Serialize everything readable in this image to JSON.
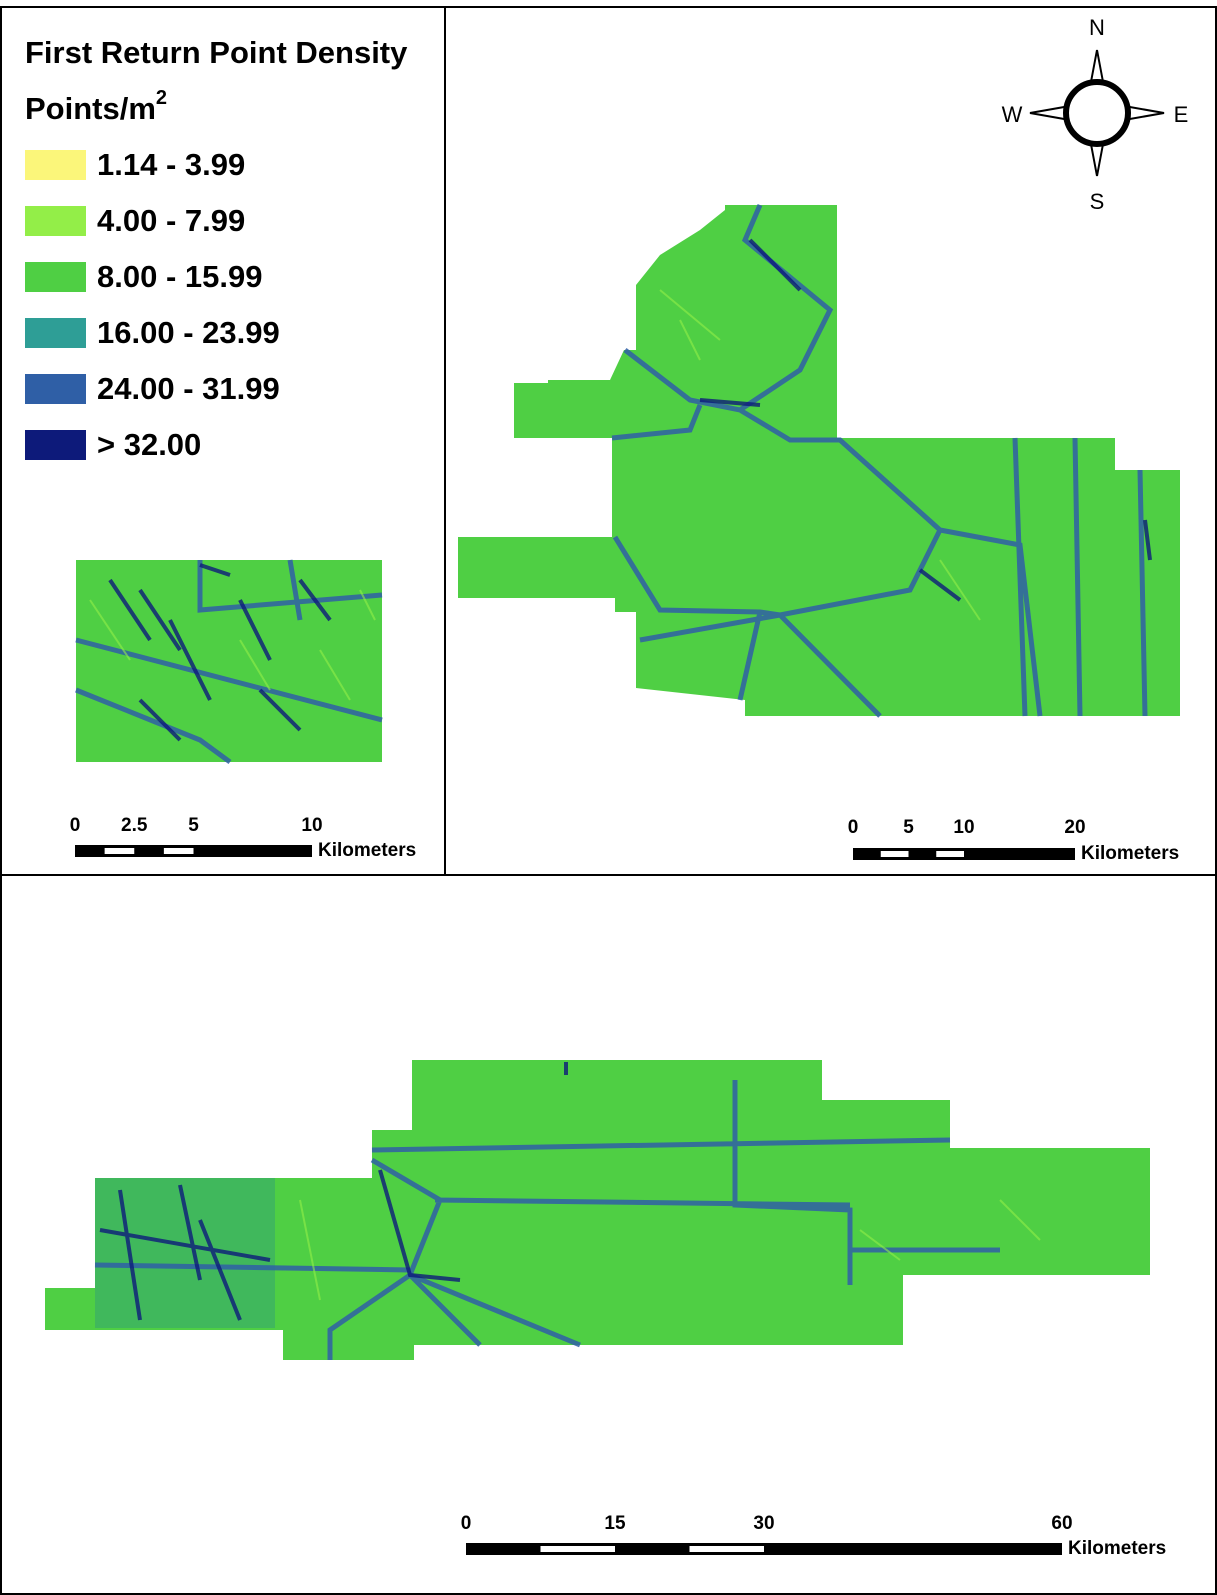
{
  "legend": {
    "title": "First Return Point Density",
    "unit": "Points/m",
    "unit_power": "2",
    "classes": [
      {
        "label": "1.14 - 3.99",
        "color": "#fbf67a"
      },
      {
        "label": "4.00 - 7.99",
        "color": "#93ee48"
      },
      {
        "label": "8.00 - 15.99",
        "color": "#4fcf44"
      },
      {
        "label": "16.00 - 23.99",
        "color": "#2e9e96"
      },
      {
        "label": "24.00 - 31.99",
        "color": "#2f5fa6"
      },
      {
        "label": "> 32.00",
        "color": "#0d1a7a"
      }
    ]
  },
  "compass": {
    "north": "N",
    "south": "S",
    "east": "E",
    "west": "W"
  },
  "scale_bars": [
    {
      "ticks": [
        0,
        2.5,
        5,
        10
      ],
      "unit": "Kilometers"
    },
    {
      "ticks": [
        0,
        5,
        10,
        20
      ],
      "unit": "Kilometers"
    },
    {
      "ticks": [
        0,
        15,
        30,
        60
      ],
      "unit": "Kilometers"
    }
  ]
}
